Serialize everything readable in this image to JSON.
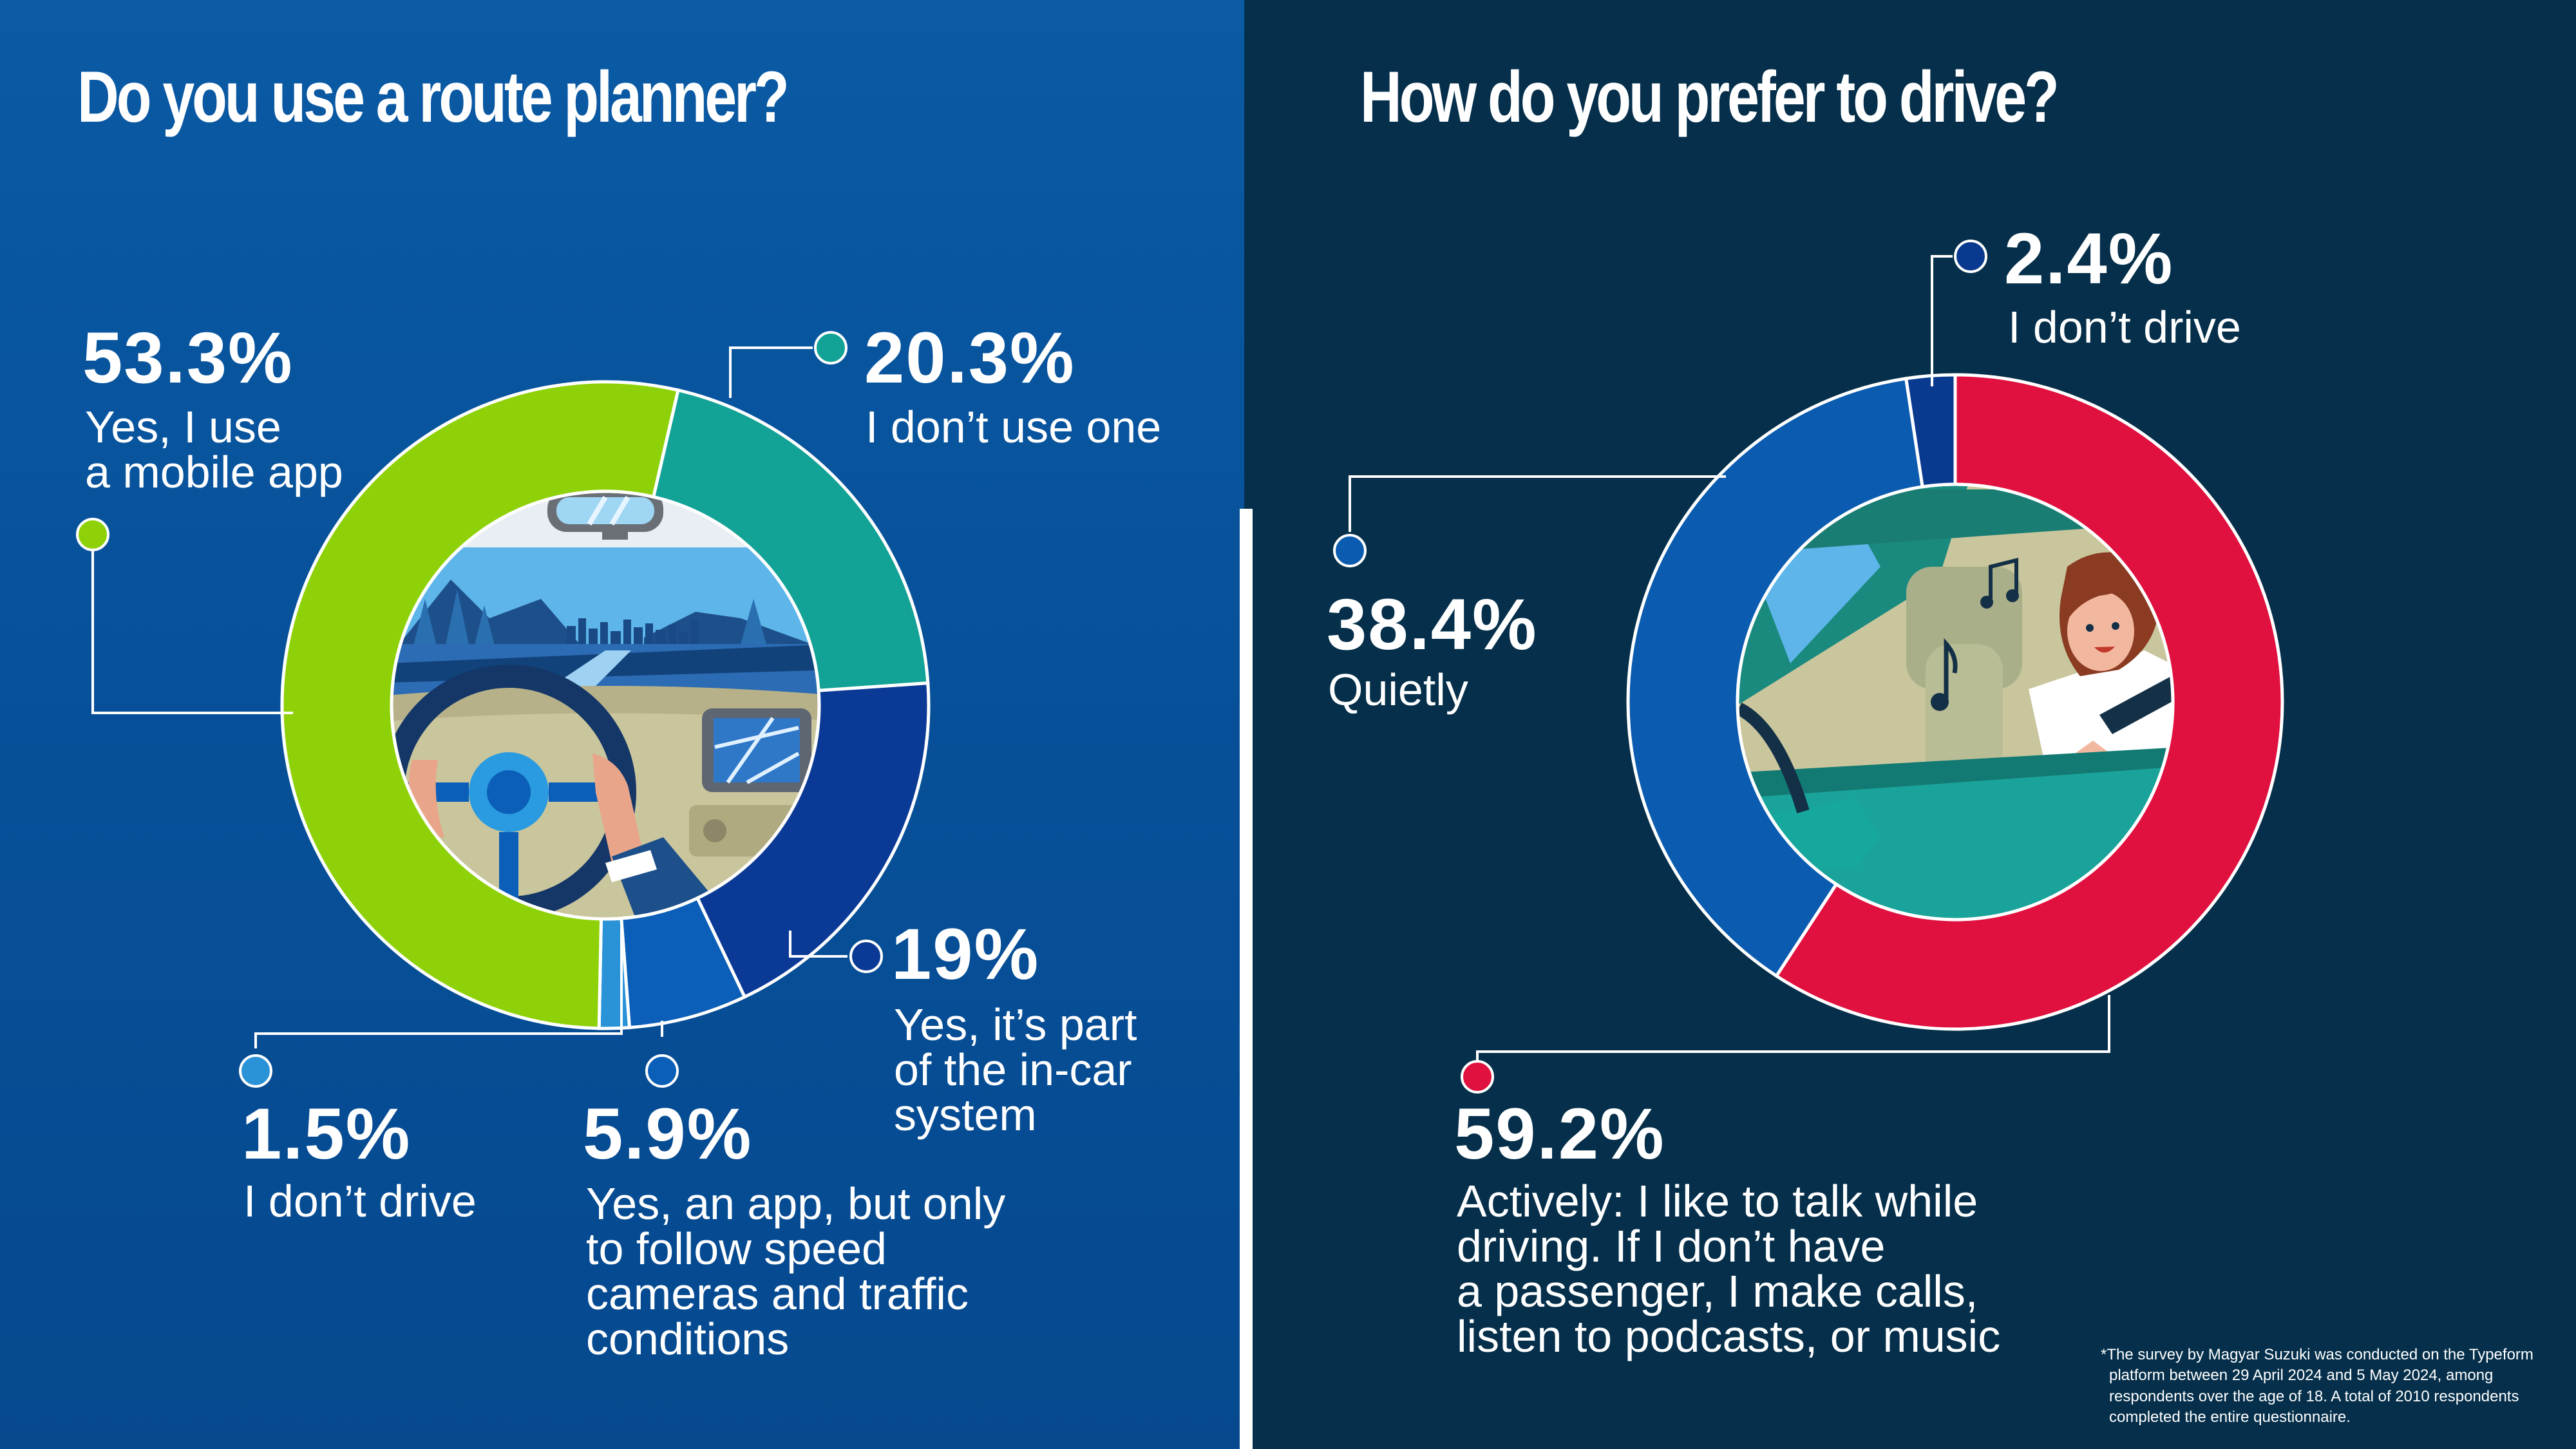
{
  "colors": {
    "left_bg": "#0a5aa4",
    "right_bg": "#052f4a",
    "mobile_app": "#8fd108",
    "dont_use": "#13a296",
    "in_car": "#0b3a96",
    "speed_cameras": "#0b5fb8",
    "dont_drive_left": "#2a93d8",
    "quietly": "#0b5cb0",
    "actively": "#e0103f",
    "dont_drive_right": "#0a3a8f"
  },
  "chart_data": [
    {
      "type": "pie",
      "title": "Do you use a route planner?",
      "slices": [
        {
          "key": "dont_use",
          "label": "I don’t use one",
          "value": 20.3,
          "display": "20.3%",
          "color": "#13a296",
          "label_lines": [
            "I don’t use one"
          ]
        },
        {
          "key": "in_car",
          "label": "Yes, it’s part of the in-car system",
          "value": 19,
          "display": "19%",
          "color": "#0b3a96",
          "label_lines": [
            "Yes, it’s part",
            "of the in-car",
            "system"
          ]
        },
        {
          "key": "speed_cameras",
          "label": "Yes, an app, but only to follow speed cameras and traffic conditions",
          "value": 5.9,
          "display": "5.9%",
          "color": "#0b5fb8",
          "label_lines": [
            "Yes, an app, but only",
            "to follow speed",
            "cameras and traffic",
            "conditions"
          ]
        },
        {
          "key": "dont_drive",
          "label": "I don’t drive",
          "value": 1.5,
          "display": "1.5%",
          "color": "#2a93d8",
          "label_lines": [
            "I don’t drive"
          ]
        },
        {
          "key": "mobile_app",
          "label": "Yes, I use a mobile app",
          "value": 53.3,
          "display": "53.3%",
          "color": "#8fd108",
          "label_lines": [
            "Yes, I use",
            "a mobile app"
          ]
        }
      ]
    },
    {
      "type": "pie",
      "title": "How do you prefer to drive?",
      "slices": [
        {
          "key": "actively",
          "label": "Actively: I like to talk while driving. If I don’t have a passenger, I make calls, listen to podcasts, or music",
          "value": 59.2,
          "display": "59.2%",
          "color": "#e0103f",
          "label_lines": [
            "Actively: I like to talk while",
            "driving. If I don’t have",
            "a passenger, I make calls,",
            "listen to podcasts, or music"
          ]
        },
        {
          "key": "quietly",
          "label": "Quietly",
          "value": 38.4,
          "display": "38.4%",
          "color": "#0b5cb0",
          "label_lines": [
            "Quietly"
          ]
        },
        {
          "key": "dont_drive",
          "label": "I don’t drive",
          "value": 2.4,
          "display": "2.4%",
          "color": "#0a3a8f",
          "label_lines": [
            "I don’t drive"
          ]
        }
      ]
    }
  ],
  "footnote": [
    "*The survey by Magyar Suzuki was conducted on the Typeform",
    "platform between 29 April 2024 and 5 May 2024, among",
    "respondents over the age of 18. A total of 2010 respondents",
    "completed the entire questionnaire."
  ]
}
